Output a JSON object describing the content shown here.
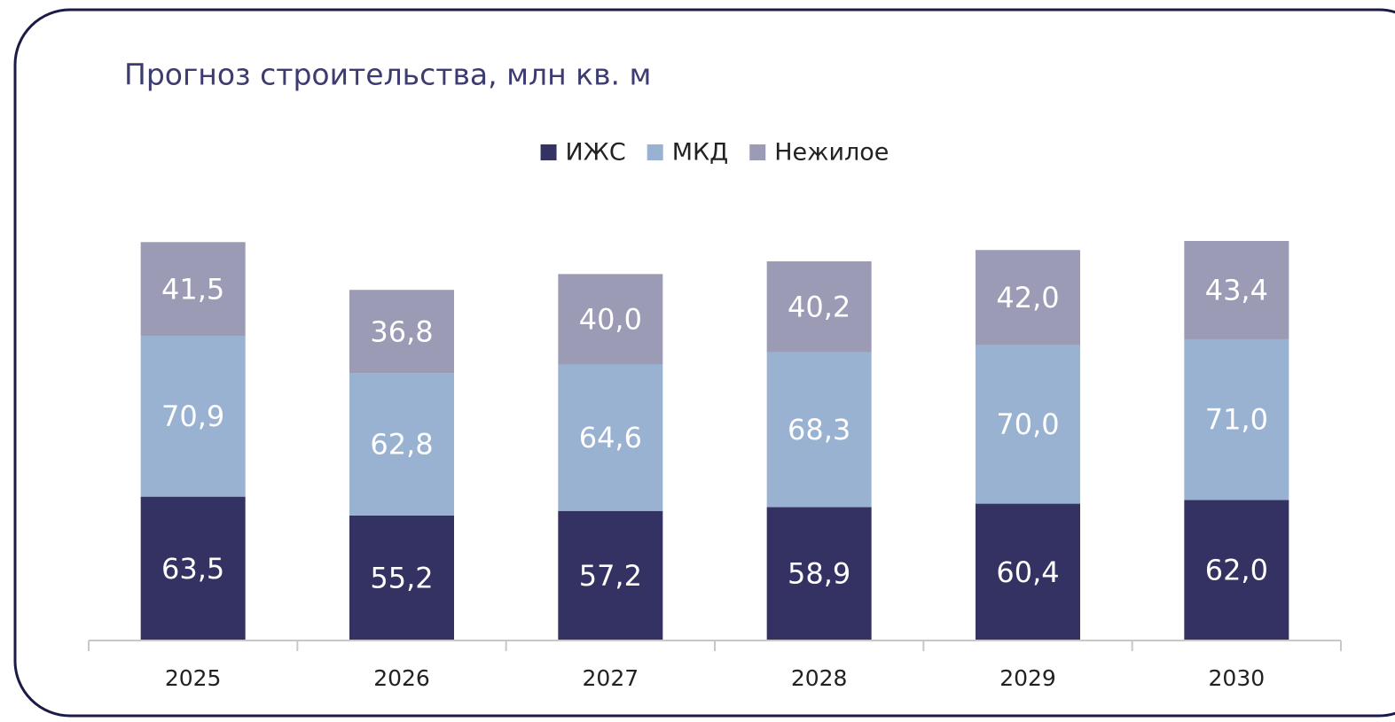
{
  "chart_data": {
    "type": "stacked_bar",
    "title": "Прогноз строительства, млн кв. м",
    "categories": [
      "2025",
      "2026",
      "2027",
      "2028",
      "2029",
      "2030"
    ],
    "series": [
      {
        "name": "ИЖС",
        "color": "#343262",
        "values": [
          63.5,
          55.2,
          57.2,
          58.9,
          60.4,
          62.0
        ],
        "value_labels": [
          "63,5",
          "55,2",
          "57,2",
          "58,9",
          "60,4",
          "62,0"
        ]
      },
      {
        "name": "МКД",
        "color": "#99b2d1",
        "values": [
          70.9,
          62.8,
          64.6,
          68.3,
          70.0,
          71.0
        ],
        "value_labels": [
          "70,9",
          "62,8",
          "64,6",
          "68,3",
          "70,0",
          "71,0"
        ]
      },
      {
        "name": "Нежилое",
        "color": "#9b9bb5",
        "values": [
          41.5,
          36.8,
          40.0,
          40.2,
          42.0,
          43.4
        ],
        "value_labels": [
          "41,5",
          "36,8",
          "40,0",
          "40,2",
          "42,0",
          "43,4"
        ]
      }
    ],
    "legend": "top"
  }
}
